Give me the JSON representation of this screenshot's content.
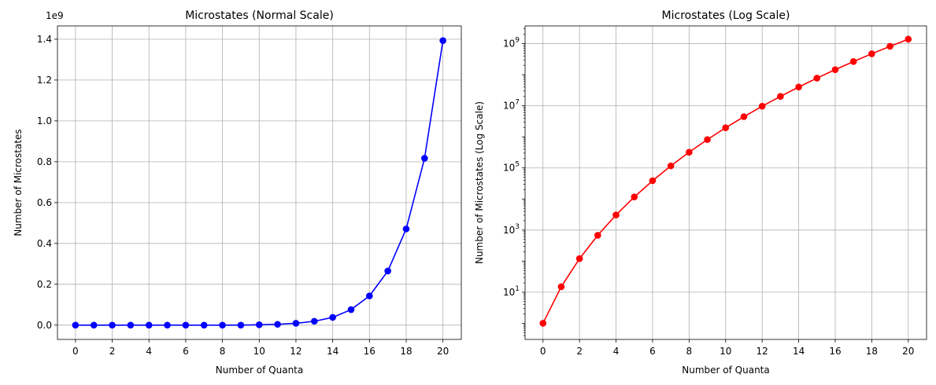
{
  "chart_data": [
    {
      "type": "line",
      "title": "Microstates (Normal Scale)",
      "xlabel": "Number of Quanta",
      "ylabel": "Number of Microstates",
      "y_offset_label": "1e9",
      "xlim": [
        -0.98,
        21.0
      ],
      "ylim": [
        -0.07,
        1.465
      ],
      "xticks": [
        0,
        2,
        4,
        6,
        8,
        10,
        12,
        14,
        16,
        18,
        20
      ],
      "xtick_labels": [
        "0",
        "2",
        "4",
        "6",
        "8",
        "10",
        "12",
        "14",
        "16",
        "18",
        "20"
      ],
      "yticks": [
        0.0,
        0.2,
        0.4,
        0.6,
        0.8,
        1.0,
        1.2,
        1.4
      ],
      "ytick_labels": [
        "0.0",
        "0.2",
        "0.4",
        "0.6",
        "0.8",
        "1.0",
        "1.2",
        "1.4"
      ],
      "yscale": "linear",
      "grid": true,
      "color": "#0000ff",
      "series": [
        {
          "x": [
            0,
            1,
            2,
            3,
            4,
            5,
            6,
            7,
            8,
            9,
            10,
            11,
            12,
            13,
            14,
            15,
            16,
            17,
            18,
            19,
            20
          ],
          "values": [
            0,
            0,
            0,
            0,
            0,
            0,
            0,
            0,
            0,
            0,
            0.002,
            0.004,
            0.009,
            0.019,
            0.038,
            0.076,
            0.143,
            0.265,
            0.471,
            0.817,
            1.393
          ]
        }
      ]
    },
    {
      "type": "line",
      "title": "Microstates (Log Scale)",
      "xlabel": "Number of Quanta",
      "ylabel": "Number of Microstates (Log Scale)",
      "xlim": [
        -0.98,
        21.0
      ],
      "ylim_exp": [
        -0.52,
        9.57
      ],
      "xticks": [
        0,
        2,
        4,
        6,
        8,
        10,
        12,
        14,
        16,
        18,
        20
      ],
      "xtick_labels": [
        "0",
        "2",
        "4",
        "6",
        "8",
        "10",
        "12",
        "14",
        "16",
        "18",
        "20"
      ],
      "yticks_exp": [
        1,
        3,
        5,
        7,
        9
      ],
      "ytick_labels": [
        {
          "base": "10",
          "exp": "1"
        },
        {
          "base": "10",
          "exp": "3"
        },
        {
          "base": "10",
          "exp": "5"
        },
        {
          "base": "10",
          "exp": "7"
        },
        {
          "base": "10",
          "exp": "9"
        }
      ],
      "yscale": "log",
      "grid": true,
      "color": "#ff0000",
      "series": [
        {
          "x": [
            0,
            1,
            2,
            3,
            4,
            5,
            6,
            7,
            8,
            9,
            10,
            11,
            12,
            13,
            14,
            15,
            16,
            17,
            18,
            19,
            20
          ],
          "values": [
            1,
            15,
            120,
            680,
            3060,
            11628,
            38760,
            116280,
            319770,
            817190,
            1961256,
            4457400,
            9657700,
            20058300,
            40116600,
            77558760,
            145422675,
            265182525,
            471435600,
            818809200,
            1391975640
          ]
        }
      ]
    }
  ]
}
